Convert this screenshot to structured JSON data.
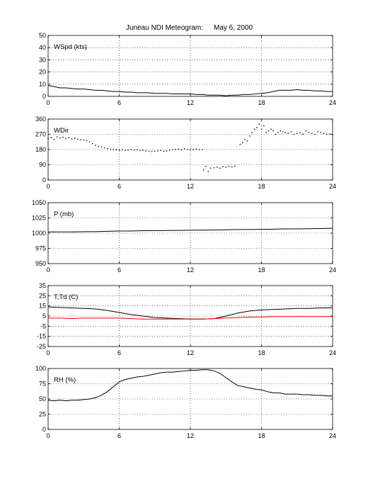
{
  "page": {
    "title": "Juneau NDI Meteogram:",
    "date": "May   6, 2000"
  },
  "colors": {
    "axis": "#000000",
    "grid": "#000000",
    "series_black": "#000000",
    "series_red": "#ff0000"
  },
  "chart_data": [
    {
      "type": "line",
      "label": "WSpd (kts)",
      "xlim": [
        0,
        24
      ],
      "ylim": [
        0,
        50
      ],
      "xticks": [
        0,
        6,
        12,
        18,
        24
      ],
      "yticks": [
        0,
        10,
        20,
        30,
        40,
        50
      ],
      "grid": true,
      "series": [
        {
          "color": "#000000",
          "x": [
            0,
            0.5,
            1,
            1.5,
            2,
            2.5,
            3,
            3.5,
            4,
            4.5,
            5,
            5.5,
            6,
            6.5,
            7,
            7.5,
            8,
            8.5,
            9,
            9.5,
            10,
            10.5,
            11,
            11.5,
            12,
            12.5,
            13,
            13.5,
            14,
            14.5,
            15,
            15.5,
            16,
            16.5,
            17,
            17.5,
            18,
            18.5,
            19,
            19.5,
            20,
            20.5,
            21,
            21.5,
            22,
            22.5,
            23,
            23.5,
            24
          ],
          "y": [
            9,
            8,
            7,
            7,
            6.5,
            6,
            6,
            5.5,
            5,
            5,
            4.5,
            4,
            4,
            3.5,
            3.5,
            3,
            3,
            3,
            2.5,
            2.5,
            2.5,
            2,
            2,
            2,
            2,
            1.5,
            1.5,
            1,
            1,
            1,
            0.5,
            1,
            1,
            1.5,
            1.5,
            2,
            2.5,
            3,
            4,
            5,
            5,
            5,
            5.5,
            5,
            5,
            4.5,
            4.5,
            4,
            4
          ]
        }
      ]
    },
    {
      "type": "scatter",
      "label": "WDir",
      "xlim": [
        0,
        24
      ],
      "ylim": [
        0,
        360
      ],
      "xticks": [
        0,
        6,
        12,
        18,
        24
      ],
      "yticks": [
        0,
        90,
        180,
        270,
        360
      ],
      "grid": true,
      "series": [
        {
          "color": "#000000",
          "x": [
            0,
            0.25,
            0.5,
            0.75,
            1,
            1.25,
            1.5,
            1.75,
            2,
            2.25,
            2.5,
            2.75,
            3,
            3.25,
            3.5,
            3.75,
            4,
            4.25,
            4.5,
            4.75,
            5,
            5.25,
            5.5,
            5.75,
            6,
            6.25,
            6.5,
            6.75,
            7,
            7.25,
            7.5,
            7.75,
            8,
            8.25,
            8.5,
            8.75,
            9,
            9.25,
            9.5,
            9.75,
            10,
            10.25,
            10.5,
            10.75,
            11,
            11.25,
            11.5,
            11.75,
            12,
            12.25,
            12.5,
            12.75,
            13,
            13.1,
            13.3,
            13.5,
            13.7,
            14,
            14.25,
            14.5,
            14.75,
            15,
            15.25,
            15.5,
            15.75,
            16.2,
            16.4,
            16.6,
            16.8,
            17,
            17.2,
            17.4,
            17.6,
            17.8,
            18,
            18.2,
            18.4,
            18.6,
            18.8,
            19,
            19.2,
            19.4,
            19.6,
            19.8,
            20,
            20.25,
            20.5,
            20.75,
            21,
            21.25,
            21.5,
            21.75,
            22,
            22.25,
            22.5,
            22.75,
            23,
            23.25,
            23.5,
            23.75,
            24
          ],
          "y": [
            245,
            250,
            240,
            255,
            248,
            252,
            245,
            250,
            243,
            247,
            240,
            238,
            235,
            232,
            225,
            215,
            205,
            198,
            195,
            190,
            185,
            182,
            180,
            178,
            176,
            178,
            175,
            177,
            180,
            176,
            178,
            174,
            176,
            172,
            170,
            168,
            170,
            172,
            175,
            170,
            172,
            175,
            178,
            180,
            182,
            178,
            185,
            180,
            178,
            180,
            182,
            178,
            180,
            60,
            80,
            50,
            70,
            72,
            75,
            70,
            78,
            75,
            80,
            78,
            82,
            210,
            220,
            240,
            230,
            260,
            280,
            300,
            310,
            330,
            300,
            320,
            280,
            290,
            300,
            290,
            270,
            280,
            290,
            285,
            280,
            275,
            285,
            270,
            275,
            280,
            270,
            290,
            280,
            275,
            270,
            285,
            280,
            275,
            270,
            272,
            268
          ]
        }
      ]
    },
    {
      "type": "line",
      "label": "P (mb)",
      "xlim": [
        0,
        24
      ],
      "ylim": [
        950,
        1050
      ],
      "xticks": [
        0,
        6,
        12,
        18,
        24
      ],
      "yticks": [
        950,
        975,
        1000,
        1025,
        1050
      ],
      "grid": true,
      "series": [
        {
          "color": "#000000",
          "x": [
            0,
            1,
            2,
            3,
            4,
            5,
            6,
            7,
            8,
            9,
            10,
            11,
            12,
            13,
            14,
            15,
            16,
            17,
            18,
            19,
            20,
            21,
            22,
            23,
            24
          ],
          "y": [
            1002,
            1002,
            1002,
            1002.3,
            1002.5,
            1003,
            1003.5,
            1003.5,
            1004,
            1004,
            1004.3,
            1004.5,
            1004.8,
            1005,
            1005.3,
            1005.5,
            1006,
            1006,
            1006.3,
            1006.5,
            1007,
            1007,
            1007.3,
            1007.5,
            1008
          ]
        }
      ]
    },
    {
      "type": "line",
      "label": "T,Td (C)",
      "xlim": [
        0,
        24
      ],
      "ylim": [
        -25,
        35
      ],
      "xticks": [
        0,
        6,
        12,
        18,
        24
      ],
      "yticks": [
        -25,
        -15,
        -5,
        5,
        15,
        25,
        35
      ],
      "grid": true,
      "series": [
        {
          "color": "#000000",
          "x": [
            0,
            1,
            2,
            3,
            4,
            5,
            6,
            7,
            8,
            9,
            10,
            11,
            12,
            13,
            14,
            15,
            16,
            17,
            18,
            19,
            20,
            21,
            22,
            23,
            24
          ],
          "y": [
            14,
            13.5,
            13,
            12.5,
            12,
            10.5,
            8.5,
            6.5,
            5,
            3.5,
            3,
            2.5,
            2,
            2,
            2.5,
            5,
            8,
            10,
            11,
            11.5,
            12,
            12.5,
            12.5,
            13,
            13
          ]
        },
        {
          "color": "#ff0000",
          "x": [
            0,
            1,
            2,
            3,
            4,
            5,
            6,
            7,
            8,
            9,
            10,
            11,
            12,
            13,
            14,
            15,
            16,
            17,
            18,
            19,
            20,
            21,
            22,
            23,
            24
          ],
          "y": [
            3,
            3,
            2.5,
            3,
            3,
            3,
            3,
            2.5,
            2,
            2,
            2,
            2,
            2,
            2,
            2.5,
            3,
            3.5,
            4,
            4,
            4.5,
            4.5,
            4.5,
            4.5,
            4.5,
            4.5
          ]
        }
      ]
    },
    {
      "type": "line",
      "label": "RH (%)",
      "xlim": [
        0,
        24
      ],
      "ylim": [
        0,
        100
      ],
      "xticks": [
        0,
        6,
        12,
        18,
        24
      ],
      "yticks": [
        0,
        25,
        50,
        75,
        100
      ],
      "grid": true,
      "series": [
        {
          "color": "#000000",
          "x": [
            0,
            0.5,
            1,
            1.5,
            2,
            2.5,
            3,
            3.5,
            4,
            4.5,
            5,
            5.5,
            6,
            6.5,
            7,
            7.5,
            8,
            8.5,
            9,
            9.5,
            10,
            10.5,
            11,
            11.5,
            12,
            12.5,
            13,
            13.5,
            14,
            14.5,
            15,
            15.5,
            16,
            16.5,
            17,
            17.5,
            18,
            18.5,
            19,
            19.5,
            20,
            20.5,
            21,
            21.5,
            22,
            22.5,
            23,
            23.5,
            24
          ],
          "y": [
            48,
            47,
            48,
            47,
            48,
            48,
            49,
            50,
            52,
            56,
            62,
            70,
            78,
            82,
            84,
            86,
            87,
            89,
            91,
            93,
            94,
            94,
            95,
            96,
            97,
            97,
            98,
            98,
            96,
            92,
            85,
            78,
            72,
            70,
            68,
            66,
            65,
            62,
            60,
            60,
            58,
            58,
            58,
            57,
            57,
            56,
            56,
            55,
            55
          ]
        }
      ]
    }
  ]
}
